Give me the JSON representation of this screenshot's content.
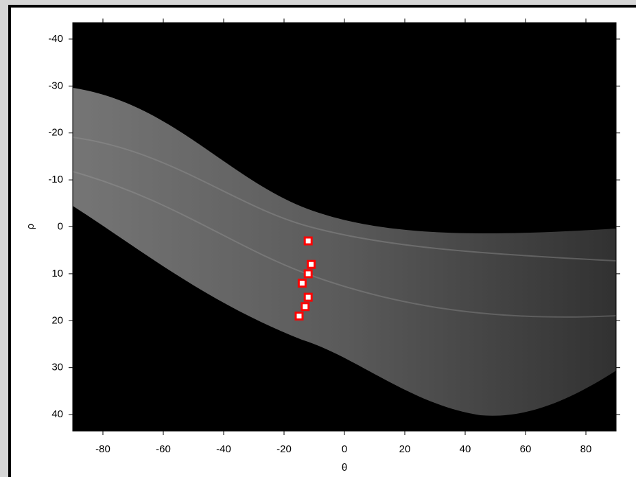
{
  "chart_data": {
    "type": "scatter",
    "xlabel": "θ",
    "ylabel": "ρ",
    "x": [
      -12,
      -11,
      -12,
      -14,
      -12,
      -13,
      -15
    ],
    "values": [
      3,
      8,
      10,
      12,
      15,
      17,
      19
    ],
    "color": "#ff0000",
    "xlim": [
      -90,
      90
    ],
    "ylim": [
      -43.5,
      43.5
    ],
    "y_reversed": true,
    "xticks": [
      -80,
      -60,
      -40,
      -20,
      0,
      20,
      40,
      60,
      80
    ],
    "yticks": [
      -40,
      -30,
      -20,
      -10,
      0,
      10,
      20,
      30,
      40
    ]
  }
}
